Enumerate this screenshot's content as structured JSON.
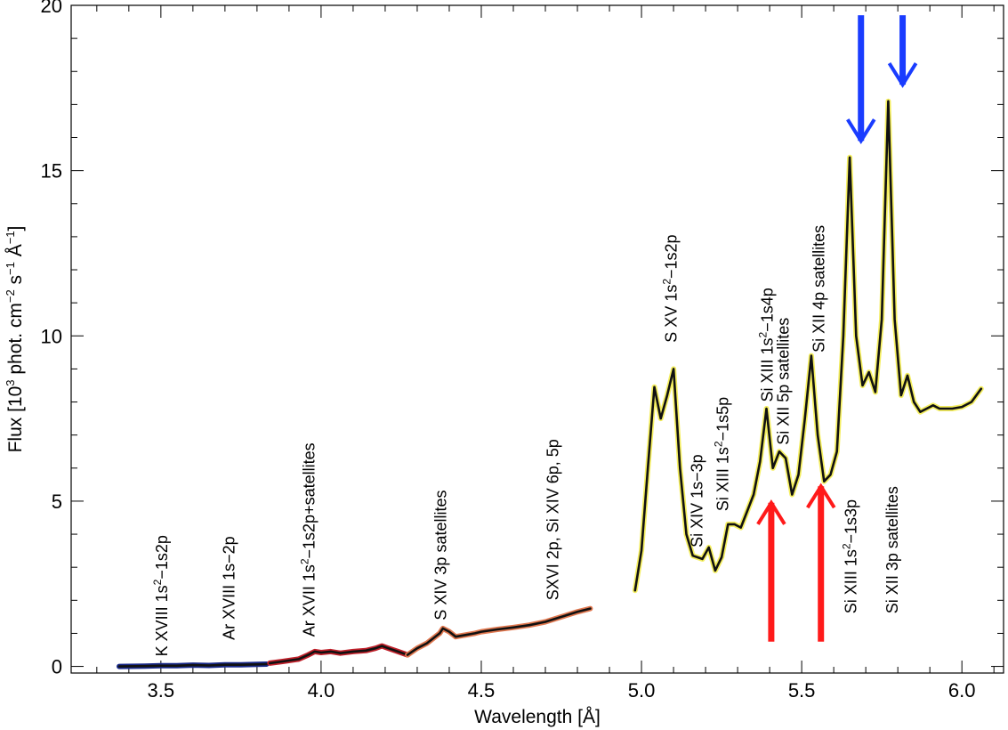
{
  "chart_data": {
    "type": "line",
    "xlabel": "Wavelength  [Å]",
    "ylabel": "Flux [10^3 phot. cm^-2 s^-1 Å^-1]",
    "ylabel_parts": {
      "a": "Flux [10",
      "a_sup": "3",
      "b": " phot. cm",
      "b_sup": "−2",
      "c": " s",
      "c_sup": "−1",
      "d": " Å",
      "d_sup": "−1",
      "e": "]"
    },
    "xlim": [
      3.22,
      6.13
    ],
    "ylim": [
      -0.2,
      20
    ],
    "xticks": [
      3.5,
      4.0,
      4.5,
      5.0,
      5.5,
      6.0
    ],
    "xtick_labels": [
      "3.5",
      "4.0",
      "4.5",
      "5.0",
      "5.5",
      "6.0"
    ],
    "yticks": [
      0,
      5,
      10,
      15,
      20
    ],
    "ytick_labels": [
      "0",
      "5",
      "10",
      "15",
      "20"
    ],
    "grid": false,
    "series": [
      {
        "color": "#1a2a8a",
        "x": [
          3.37,
          3.45,
          3.5,
          3.55,
          3.6,
          3.65,
          3.7,
          3.75,
          3.8,
          3.83
        ],
        "y": [
          0.0,
          0.01,
          0.02,
          0.02,
          0.04,
          0.03,
          0.05,
          0.05,
          0.06,
          0.07
        ]
      },
      {
        "color": "#c0202a",
        "x": [
          3.84,
          3.88,
          3.93,
          3.96,
          3.98,
          4.0,
          4.03,
          4.06,
          4.1,
          4.14,
          4.17,
          4.19,
          4.21,
          4.24,
          4.27
        ],
        "y": [
          0.1,
          0.15,
          0.22,
          0.35,
          0.45,
          0.42,
          0.45,
          0.4,
          0.45,
          0.48,
          0.55,
          0.62,
          0.55,
          0.45,
          0.35
        ]
      },
      {
        "color": "#e07850",
        "x": [
          4.27,
          4.3,
          4.33,
          4.35,
          4.37,
          4.38,
          4.4,
          4.42,
          4.45,
          4.48,
          4.5,
          4.55,
          4.6,
          4.65,
          4.7,
          4.75,
          4.8,
          4.84
        ],
        "y": [
          0.35,
          0.55,
          0.7,
          0.85,
          1.0,
          1.15,
          1.05,
          0.9,
          0.95,
          1.0,
          1.05,
          1.12,
          1.18,
          1.25,
          1.35,
          1.5,
          1.65,
          1.75
        ]
      },
      {
        "color": "#f4ee60",
        "x": [
          4.98,
          5.0,
          5.02,
          5.04,
          5.06,
          5.08,
          5.1,
          5.12,
          5.14,
          5.16,
          5.19,
          5.21,
          5.23,
          5.25,
          5.27,
          5.29,
          5.31,
          5.33,
          5.35,
          5.37,
          5.39,
          5.41,
          5.43,
          5.45,
          5.47,
          5.49,
          5.51,
          5.53,
          5.55,
          5.57,
          5.59,
          5.61,
          5.63,
          5.65,
          5.67,
          5.69,
          5.71,
          5.73,
          5.75,
          5.77,
          5.79,
          5.81,
          5.83,
          5.85,
          5.87,
          5.89,
          5.91,
          5.93,
          5.95,
          5.97,
          6.0,
          6.03,
          6.06
        ],
        "y": [
          2.3,
          3.5,
          6.0,
          8.45,
          7.5,
          8.2,
          9.0,
          6.0,
          4.0,
          3.35,
          3.25,
          3.6,
          2.9,
          3.3,
          4.3,
          4.3,
          4.2,
          4.7,
          5.2,
          6.2,
          7.8,
          6.0,
          6.5,
          6.3,
          5.2,
          5.8,
          7.5,
          9.4,
          7.0,
          5.6,
          5.8,
          6.5,
          10.0,
          15.4,
          10.0,
          8.5,
          8.9,
          8.3,
          10.5,
          17.1,
          10.5,
          8.2,
          8.8,
          8.0,
          7.7,
          7.8,
          7.9,
          7.8,
          7.8,
          7.8,
          7.85,
          8.0,
          8.4
        ]
      }
    ],
    "annotations": [
      {
        "text": "K XVIII 1s",
        "sup": "2",
        "text2": "−1s2p",
        "x": 3.52,
        "y": 0.3
      },
      {
        "text": "Ar XVIII 1s−2p",
        "x": 3.73,
        "y": 0.8
      },
      {
        "text": "Ar XVII 1s",
        "sup": "2",
        "text2": "−1s2p+satellites",
        "x": 3.98,
        "y": 0.9
      },
      {
        "text": "S XIV 3p satellites",
        "x": 4.39,
        "y": 1.4
      },
      {
        "text": "SXVI 2p, Si XIV 6p, 5p",
        "x": 4.74,
        "y": 2.0
      },
      {
        "text": "S XV 1s",
        "sup": "2",
        "text2": "−1s2p",
        "x": 5.11,
        "y": 9.8
      },
      {
        "text": "Si XIV 1s−3p",
        "x": 5.19,
        "y": 3.6
      },
      {
        "text": "Si XIII 1s",
        "sup": "2",
        "text2": "−1s5p",
        "x": 5.27,
        "y": 4.7
      },
      {
        "text": "Si XIII 1s",
        "sup": "2",
        "text2": "−1s4p",
        "x": 5.41,
        "y": 8.0
      },
      {
        "text": "Si XII 5p satellites",
        "x": 5.46,
        "y": 6.7
      },
      {
        "text": "Si XII 4p satellites",
        "x": 5.57,
        "y": 9.5
      },
      {
        "text": "Si XIII 1s",
        "sup": "2",
        "text2": "−1s3p",
        "x": 5.67,
        "y": 1.6
      },
      {
        "text": "Si XII 3p satellites",
        "x": 5.8,
        "y": 1.6
      }
    ],
    "arrows": [
      {
        "color": "#ff1a1a",
        "direction": "up",
        "x": 5.405,
        "y_from": 0.75,
        "y_to": 4.95
      },
      {
        "color": "#ff1a1a",
        "direction": "up",
        "x": 5.56,
        "y_from": 0.75,
        "y_to": 5.45
      },
      {
        "color": "#1a3cff",
        "direction": "down",
        "x": 5.685,
        "y_from": 19.7,
        "y_to": 15.9
      },
      {
        "color": "#1a3cff",
        "direction": "down",
        "x": 5.815,
        "y_from": 19.7,
        "y_to": 17.6
      }
    ]
  }
}
